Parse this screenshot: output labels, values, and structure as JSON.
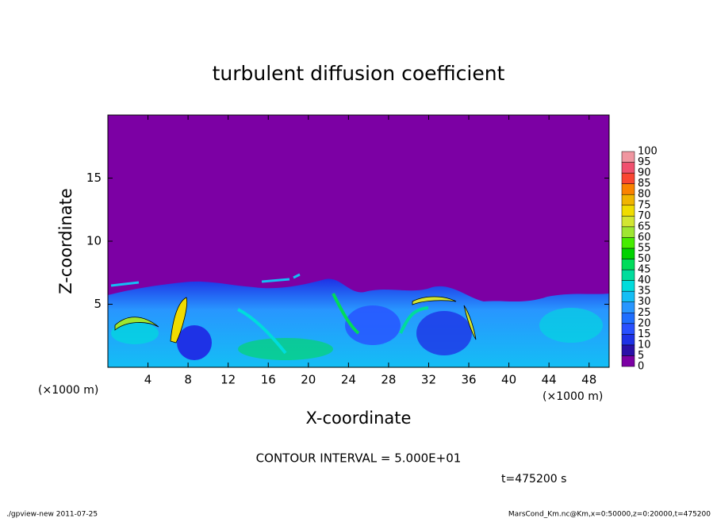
{
  "chart_data": {
    "type": "contour",
    "title": "turbulent diffusion coefficient",
    "xlabel": "X-coordinate",
    "ylabel": "Z-coordinate",
    "x_unit": "(×1000 m)",
    "xlim": [
      0,
      50
    ],
    "xticks": [
      4,
      8,
      12,
      16,
      20,
      24,
      28,
      32,
      36,
      40,
      44,
      48
    ],
    "ylim": [
      0,
      20
    ],
    "yticks": [
      5,
      10,
      15
    ],
    "colorbar": {
      "levels": [
        0,
        5,
        10,
        15,
        20,
        25,
        30,
        35,
        40,
        45,
        50,
        55,
        60,
        65,
        70,
        75,
        80,
        85,
        90,
        95,
        100
      ],
      "colors": [
        "#7c00a4",
        "#2a10a8",
        "#1e32e6",
        "#2850ff",
        "#1e6eff",
        "#2896ff",
        "#14bef5",
        "#00dcdc",
        "#00dc9c",
        "#00dc5a",
        "#00d200",
        "#46ec00",
        "#9ee632",
        "#d2e632",
        "#f0dc00",
        "#f0b400",
        "#fa8200",
        "#fa4632",
        "#f0506e",
        "#f096a0"
      ]
    },
    "contour_interval_label": "CONTOUR INTERVAL = 5.000E+01",
    "time_label": "t=475200 s",
    "footer_left": "./gpview-new  2011-07-25",
    "footer_right": "MarsCond_Km.nc@Km,x=0:50000,z=0:20000,t=475200"
  }
}
